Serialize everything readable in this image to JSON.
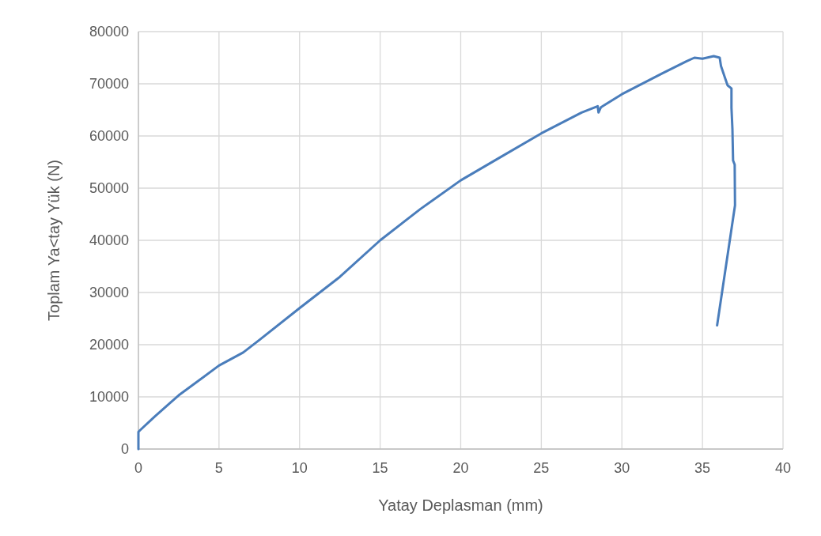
{
  "chart_data": {
    "type": "line",
    "xlabel": "Yatay Deplasman (mm)",
    "ylabel": "Toplam Ya<tay Yük (N)",
    "xlim": [
      0,
      40
    ],
    "xticks": [
      0,
      5,
      10,
      15,
      20,
      25,
      30,
      35,
      40
    ],
    "ylim": [
      0,
      80000
    ],
    "yticks": [
      0,
      10000,
      20000,
      30000,
      40000,
      50000,
      60000,
      70000,
      80000
    ],
    "grid": true,
    "marker": "none",
    "line_style": "solid",
    "series": [
      {
        "color": "#4a7dbb",
        "x": [
          0,
          0,
          0.1,
          1,
          2.5,
          5,
          6.5,
          7.5,
          10,
          12.5,
          15,
          17.5,
          20,
          22.5,
          25,
          27.5,
          28.5,
          28.55,
          28.7,
          30,
          32.5,
          34,
          34.5,
          35,
          35.7,
          36.07,
          36.15,
          36.37,
          36.56,
          36.8,
          36.8,
          36.86,
          36.9,
          37.0,
          37.02,
          35.91
        ],
        "values": [
          0,
          3300,
          3600,
          6200,
          10300,
          16000,
          18500,
          20900,
          27000,
          33000,
          40000,
          46000,
          51500,
          56000,
          60500,
          64500,
          65700,
          64500,
          65500,
          68000,
          72000,
          74300,
          75000,
          74800,
          75300,
          75000,
          73400,
          71400,
          69700,
          69100,
          65400,
          61300,
          55300,
          54500,
          46700,
          23700
        ]
      }
    ]
  }
}
